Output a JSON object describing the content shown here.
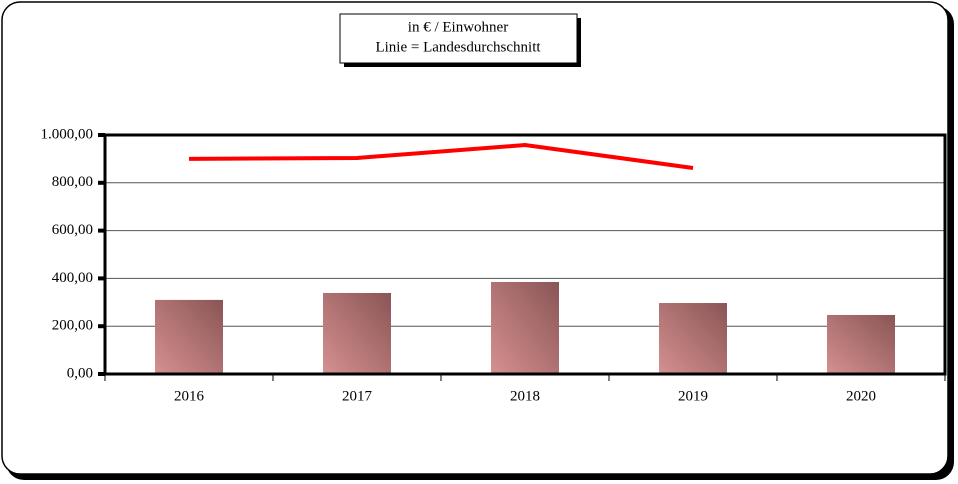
{
  "chart_data": {
    "type": "bar",
    "title": [
      "in € / Einwohner",
      "Linie = Landesdurchschnitt"
    ],
    "categories": [
      "2016",
      "2017",
      "2018",
      "2019",
      "2020"
    ],
    "series": [
      {
        "type": "bar",
        "color": "#c07878",
        "values": [
          310,
          339,
          385,
          297,
          247
        ]
      },
      {
        "type": "line",
        "color": "#ff0000",
        "values": [
          900,
          904,
          958,
          862,
          null
        ]
      }
    ],
    "ylim": [
      0,
      1000
    ],
    "yticks": [
      {
        "value": 0,
        "label": "0,00"
      },
      {
        "value": 200,
        "label": "200,00"
      },
      {
        "value": 400,
        "label": "400,00"
      },
      {
        "value": 600,
        "label": "600,00"
      },
      {
        "value": 800,
        "label": "800,00"
      },
      {
        "value": 1000,
        "label": "1.000,00"
      }
    ],
    "grid": true
  }
}
